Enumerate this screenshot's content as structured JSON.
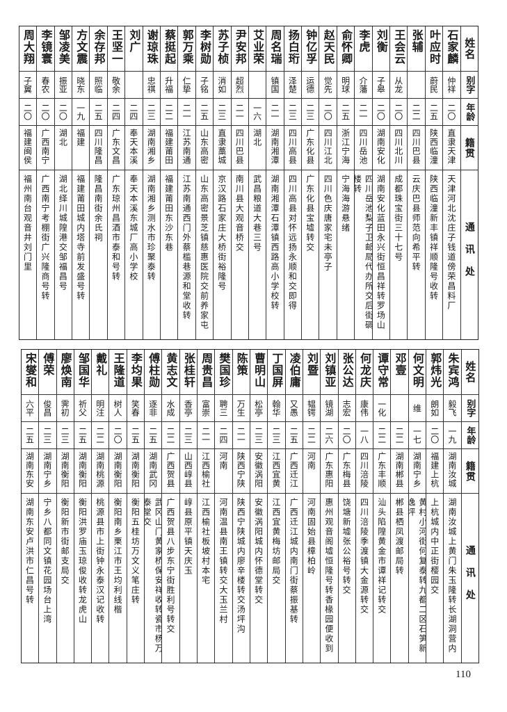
{
  "headers": {
    "name": "姓名",
    "alias": "别字",
    "age": "年龄",
    "origin": "籍贯",
    "address": "通讯处"
  },
  "top_table": [
    {
      "name": "石家麟",
      "alias": "仲祥",
      "age": "二〇",
      "origin": "直隶天津",
      "address": "天津河北沈庄子钱道傍荣昌料厂"
    },
    {
      "name": "叶应时",
      "alias": "蔚民",
      "age": "二五",
      "origin": "陕西临潼",
      "address": "陕西临潼新丰镇祥顺隆号收转"
    },
    {
      "name": "张辅",
      "alias": "",
      "age": "二二",
      "origin": "四川巴县",
      "address": "云庆巴县师范向希平转"
    },
    {
      "name": "王会云",
      "alias": "从龙",
      "age": "二〇",
      "origin": "四川北川",
      "address": "成都珠宝街三十七号"
    },
    {
      "name": "刘衡",
      "alias": "子皋",
      "age": "二〇",
      "origin": "湖南安化",
      "address": "湖南安化蓝田永兴街恒昌祥转罗场山"
    },
    {
      "name": "李虎",
      "alias": "介藩",
      "age": "二一",
      "origin": "四川岳池",
      "address": "四川岳池梨子卫邮局代办所交后街碉楼转"
    },
    {
      "name": "俞怀卿",
      "alias": "明球",
      "age": "二五",
      "origin": "浙江宁海",
      "address": "宁海海游悬绪"
    },
    {
      "name": "赵天民",
      "alias": "觉先",
      "age": "二〇",
      "origin": "四川江北",
      "address": "四川色庆唐家宅未亭子"
    },
    {
      "name": "钟亿孚",
      "alias": "运德",
      "age": "二三",
      "origin": "广东化县",
      "address": "广东化县宝墟转交"
    },
    {
      "name": "扬白珩",
      "alias": "泽楚",
      "age": "二三",
      "origin": "四川高县",
      "address": "四川高县对怀远扬永顺和交即得"
    },
    {
      "name": "周名瑞",
      "alias": "镇国",
      "age": "二一",
      "origin": "湖南湘潭",
      "address": "湖南湘潭石潭镇西路高小学校转"
    },
    {
      "name": "艾业荣",
      "alias": "",
      "age": "一六",
      "origin": "湖北",
      "address": "武昌粮道大巷三号"
    },
    {
      "name": "尹安邦",
      "alias": "超烈",
      "age": "二一",
      "origin": "四川巴县",
      "address": "南川县大观音桥交"
    },
    {
      "name": "苏子桢",
      "alias": "消如",
      "age": "二三",
      "origin": "直隶藁城",
      "address": "京汉路石家庄大桥街裕隆号"
    },
    {
      "name": "李树勋",
      "alias": "子铭",
      "age": "二五",
      "origin": "山东高密",
      "address": "山东高密景芝镇慈惠医院交前养家屯"
    },
    {
      "name": "郭万乘",
      "alias": "仁挚",
      "age": "二一",
      "origin": "江苏南通",
      "address": "江苏南通西门外蔡槛巷源和堂收转"
    },
    {
      "name": "蔡挺起",
      "alias": "升福",
      "age": "二二",
      "origin": "福建莆田",
      "address": "福建莆田东沙东巷"
    },
    {
      "name": "谢琼珠",
      "alias": "忠祺",
      "age": "二三",
      "origin": "湖南湘乡",
      "address": "湖南湘乡测水市珍聚泰转"
    },
    {
      "name": "刘广",
      "alias": "",
      "age": "二四",
      "origin": "奉天本溪",
      "address": "奉天本溪东城厂高小学校"
    },
    {
      "name": "王坚一",
      "alias": "敬余",
      "age": "二四",
      "origin": "广东文昌",
      "address": "广东琼州昌酒市泰和号转"
    },
    {
      "name": "余存邦",
      "alias": "照临",
      "age": "二五",
      "origin": "四川隆昌",
      "address": "隆昌南街余氏祠"
    },
    {
      "name": "方文震",
      "alias": "晓东",
      "age": "一九",
      "origin": "福建",
      "address": "福建莆田城内塔寺前发盛号转"
    },
    {
      "name": "邹凌美",
      "alias": "振亚",
      "age": "二〇",
      "origin": "湖北",
      "address": "湖北绎川城隍港交邹福昌号"
    },
    {
      "name": "李镜寰",
      "alias": "春农",
      "age": "二〇",
      "origin": "广西南宁",
      "address": "广西南宁考棚街广兴隆商号转"
    },
    {
      "name": "周大翔",
      "alias": "子翼",
      "age": "二〇",
      "origin": "福建闽侯",
      "address": "福州南台观音井刘门里"
    }
  ],
  "bottom_table": [
    {
      "name": "朱宾鸿",
      "alias": "毅飞",
      "age": "一九",
      "origin": "湖南汝城",
      "address": "湖南汝城上黄门朱玉隆转长湖洞营内"
    },
    {
      "name": "郭炜光",
      "alias": "朗如",
      "age": "二〇",
      "origin": "福建上杭",
      "address": "上杭城内中正街樱园交"
    },
    {
      "name": "何文明",
      "alias": "维",
      "age": "一七",
      "origin": "湖南宁乡",
      "address": "黄村小河街何复泰转九都二区石笋新逸坪"
    },
    {
      "name": "邓壹",
      "alias": "",
      "age": "二二",
      "origin": "湖南郴县",
      "address": "郴县栖凤渡邮局转"
    },
    {
      "name": "谭守常",
      "alias": "一化",
      "age": "二二",
      "origin": "广东丰顺",
      "address": "汕头陷隍黄金市谭祥记转交"
    },
    {
      "name": "何龙庆",
      "alias": "康伟",
      "age": "一八",
      "origin": "四川涪陵",
      "address": "四川涪陵季渡镇大金源转交"
    },
    {
      "name": "张公达",
      "alias": "志宏",
      "age": "二〇",
      "origin": "广东梅县",
      "address": "饶塘新墟张公裕号转交"
    },
    {
      "name": "刘镇亚",
      "alias": "镜湖",
      "age": "二六",
      "origin": "广东惠阳",
      "address": "惠州观音阁墟恒隆号转香椽园便收到"
    },
    {
      "name": "刘暨",
      "alias": "韫锷",
      "age": "二二",
      "origin": "河南",
      "address": "河南固始县樟柏岭"
    },
    {
      "name": "凌伯庸",
      "alias": "又愚",
      "age": "二五",
      "origin": "广西迁江",
      "address": "广西迁江城内南门街蔡振基转"
    },
    {
      "name": "丁国屏",
      "alias": "翰华",
      "age": "二三",
      "origin": "江西宜黄",
      "address": "江西宜黄梅坊邮局交"
    },
    {
      "name": "曹明山",
      "alias": "松亭",
      "age": "二三",
      "origin": "安徽涡阳",
      "address": "安徽涡阳城内怀德堂转交"
    },
    {
      "name": "陈策",
      "alias": "万生",
      "age": "二一",
      "origin": "陕西宁陕",
      "address": "陕西宁陕城内廖辛楼转交汤坪沟"
    },
    {
      "name": "樊国珍",
      "alias": "聘三",
      "age": "二四",
      "origin": "河南",
      "address": "河南温县南王镇转交大玉兰村"
    },
    {
      "name": "周贵昌",
      "alias": "富崇",
      "age": "二一",
      "origin": "江西榆社",
      "address": "江西榆社板坡村本宅"
    },
    {
      "name": "张桂轩",
      "alias": "香亭",
      "age": "二三",
      "origin": "山西崞县",
      "address": "崞县原平镇天庆玉"
    },
    {
      "name": "黄志文",
      "alias": "水成",
      "age": "二二",
      "origin": "广西贺县",
      "address": "广西贺县八步东宁街胜利号转交"
    },
    {
      "name": "傅柱勋",
      "alias": "逐非",
      "age": "二五",
      "origin": "湖南武冈",
      "address": "武冈山门黄家桥保安祥收转瓷市杨万泰堂交"
    },
    {
      "name": "李均果",
      "alias": "笑春",
      "age": "二五",
      "origin": "湖南衡阳",
      "address": "衡阳五桂坊万文义笔庄转"
    },
    {
      "name": "王隆道",
      "alias": "树人",
      "age": "二〇",
      "origin": "湖南衡阳",
      "address": "衡阳南乡栗江市王均利线楷"
    },
    {
      "name": "戴礼",
      "alias": "明注",
      "age": "二二",
      "origin": "湖南桃源",
      "address": "桃源县市上街钟永泰汉记收转"
    },
    {
      "name": "邹国华",
      "alias": "祈父",
      "age": "二五",
      "origin": "湖南衡阳",
      "address": "衡阳洪罗庙玉琼俊收转龙虎山"
    },
    {
      "name": "廖焕南",
      "alias": "霁初",
      "age": "二三",
      "origin": "湖南衡阳",
      "address": "衡阳新市街邮支局交"
    },
    {
      "name": "傅荣",
      "alias": "俊昌",
      "age": "二三",
      "origin": "湖南宁乡",
      "address": "宁乡八都同文镇花园场台上湾"
    },
    {
      "name": "宋燮和",
      "alias": "六平",
      "age": "二五",
      "origin": "湖南东安",
      "address": "湖南东安卢洪市仁昌号转"
    }
  ],
  "page_number": "110"
}
